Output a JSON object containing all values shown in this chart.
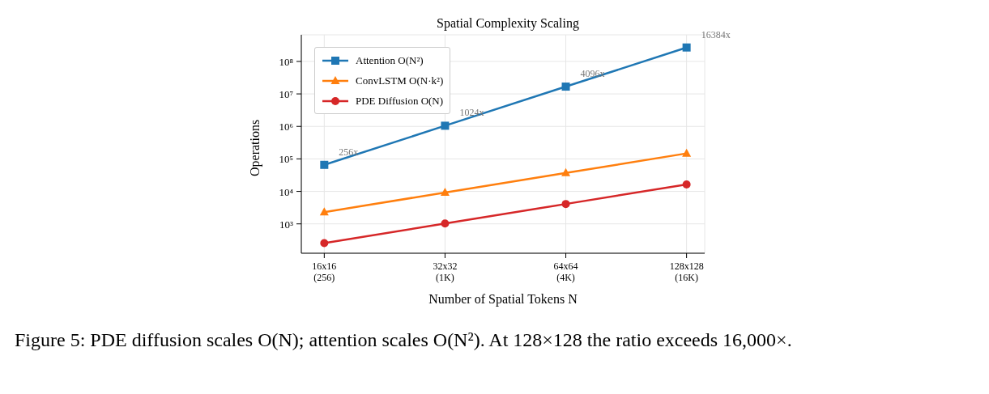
{
  "chart_data": {
    "type": "line",
    "title": "Spatial Complexity Scaling",
    "xlabel": "Number of Spatial Tokens N",
    "ylabel": "Operations",
    "categories": [
      "16x16\n(256)",
      "32x32\n(1K)",
      "64x64\n(4K)",
      "128x128\n(16K)"
    ],
    "series": [
      {
        "name": "Attention O(N²)",
        "color": "#1f77b4",
        "marker": "square",
        "values": [
          65536,
          1048576,
          16777216,
          268435456
        ]
      },
      {
        "name": "ConvLSTM O(N·k²)",
        "color": "#ff7f0e",
        "marker": "triangle",
        "values": [
          2304,
          9216,
          36864,
          147456
        ]
      },
      {
        "name": "PDE Diffusion O(N)",
        "color": "#d62728",
        "marker": "circle",
        "values": [
          256,
          1024,
          4096,
          16384
        ]
      }
    ],
    "log": "y",
    "ylim": [
      125,
      660000000
    ],
    "yticks": [
      {
        "value": 1000,
        "label": "10³"
      },
      {
        "value": 10000,
        "label": "10⁴"
      },
      {
        "value": 100000,
        "label": "10⁵"
      },
      {
        "value": 1000000,
        "label": "10⁶"
      },
      {
        "value": 10000000,
        "label": "10⁷"
      },
      {
        "value": 100000000,
        "label": "10⁸"
      }
    ],
    "grid": true,
    "legend": "top left",
    "line_style": "solid",
    "annotations": [
      {
        "text": "256x",
        "x": "16x16\n(256)",
        "y": 65536
      },
      {
        "text": "1024x",
        "x": "32x32\n(1K)",
        "y": 1048576
      },
      {
        "text": "4096x",
        "x": "64x64\n(4K)",
        "y": 16777216
      },
      {
        "text": "16384x",
        "x": "128x128\n(16K)",
        "y": 268435456
      },
      "Figure 5: PDE diffusion scales O(N); attention scales O(N²). At 128×128 the ratio exceeds 16,000×."
    ]
  }
}
